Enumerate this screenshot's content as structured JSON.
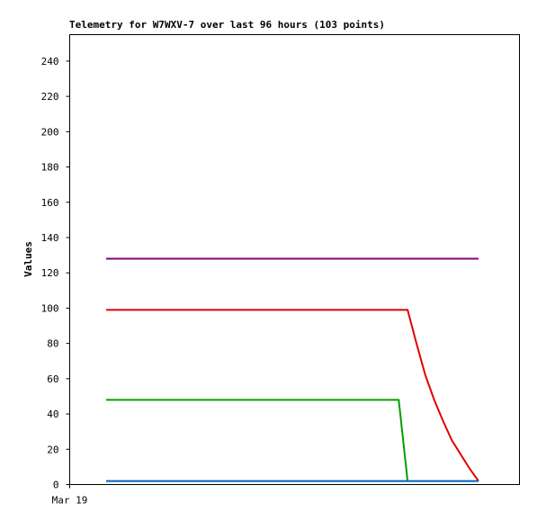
{
  "chart_data": {
    "type": "line",
    "title": "Telemetry for W7WXV-7 over last 96 hours (103 points)",
    "ylabel": "Values",
    "xlabels": [
      "Mar 19"
    ],
    "ylim": [
      0,
      255
    ],
    "yticks": [
      0,
      20,
      40,
      60,
      80,
      100,
      120,
      140,
      160,
      180,
      200,
      220,
      240
    ],
    "series": [
      {
        "color": "#800080",
        "values": [
          128,
          128,
          128,
          128,
          128,
          128,
          128,
          128,
          128,
          128,
          128,
          128,
          128,
          128,
          128,
          128,
          128,
          128,
          128,
          128,
          128,
          128,
          128,
          128,
          128,
          128,
          128,
          128,
          128,
          128,
          128,
          128,
          128,
          128,
          128,
          128,
          128,
          128,
          128,
          128,
          128,
          128,
          128
        ]
      },
      {
        "color": "#e00000",
        "values": [
          99,
          99,
          99,
          99,
          99,
          99,
          99,
          99,
          99,
          99,
          99,
          99,
          99,
          99,
          99,
          99,
          99,
          99,
          99,
          99,
          99,
          99,
          99,
          99,
          99,
          99,
          99,
          99,
          99,
          99,
          99,
          99,
          99,
          99,
          99,
          80,
          62,
          48,
          36,
          25,
          17,
          9,
          2
        ]
      },
      {
        "color": "#00a000",
        "values": [
          48,
          48,
          48,
          48,
          48,
          48,
          48,
          48,
          48,
          48,
          48,
          48,
          48,
          48,
          48,
          48,
          48,
          48,
          48,
          48,
          48,
          48,
          48,
          48,
          48,
          48,
          48,
          48,
          48,
          48,
          48,
          48,
          48,
          48,
          2,
          null,
          null,
          null,
          null,
          null,
          null,
          null,
          null
        ]
      },
      {
        "color": "#0060c0",
        "values": [
          2,
          2,
          2,
          2,
          2,
          2,
          2,
          2,
          2,
          2,
          2,
          2,
          2,
          2,
          2,
          2,
          2,
          2,
          2,
          2,
          2,
          2,
          2,
          2,
          2,
          2,
          2,
          2,
          2,
          2,
          2,
          2,
          2,
          2,
          2,
          2,
          2,
          2,
          2,
          2,
          2,
          2,
          2
        ]
      }
    ]
  }
}
